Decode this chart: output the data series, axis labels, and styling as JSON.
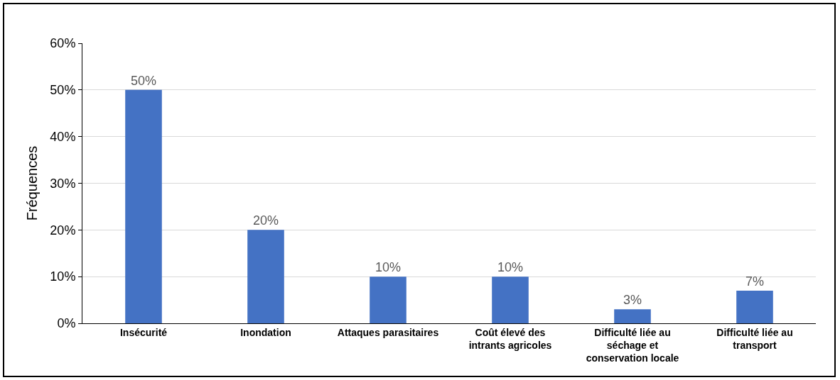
{
  "chart_data": {
    "type": "bar",
    "ylabel": "Fréquences",
    "categories": [
      "Insécurité",
      "Inondation",
      "Attaques parasitaires",
      "Coût élevé des intrants agricoles",
      "Difficulté liée au séchage et conservation locale",
      "Difficulté liée au transport"
    ],
    "values": [
      50,
      20,
      10,
      10,
      3,
      7
    ],
    "value_labels": [
      "50%",
      "20%",
      "10%",
      "10%",
      "3%",
      "7%"
    ],
    "color": "#4472c4",
    "ylim": [
      0,
      60
    ],
    "yticks": [
      {
        "value": 0,
        "label": "0%"
      },
      {
        "value": 10,
        "label": "10%"
      },
      {
        "value": 20,
        "label": "20%"
      },
      {
        "value": 30,
        "label": "30%"
      },
      {
        "value": 40,
        "label": "40%"
      },
      {
        "value": 50,
        "label": "50%"
      },
      {
        "value": 60,
        "label": "60%"
      }
    ],
    "grid": "y"
  }
}
